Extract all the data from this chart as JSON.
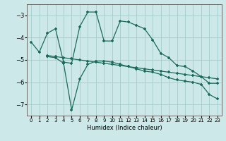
{
  "xlabel": "Humidex (Indice chaleur)",
  "bg_color": "#cce8e8",
  "grid_color": "#aacfcf",
  "line_color": "#1a6b5a",
  "xlim": [
    -0.5,
    23.5
  ],
  "ylim": [
    -7.5,
    -2.5
  ],
  "yticks": [
    -7,
    -6,
    -5,
    -4,
    -3
  ],
  "xticks": [
    0,
    1,
    2,
    3,
    4,
    5,
    6,
    7,
    8,
    9,
    10,
    11,
    12,
    13,
    14,
    15,
    16,
    17,
    18,
    19,
    20,
    21,
    22,
    23
  ],
  "line1_x": [
    0,
    1,
    2,
    3,
    4,
    5,
    6,
    7,
    8,
    9,
    10,
    11,
    12,
    13,
    14,
    15,
    16,
    17,
    18,
    19,
    20,
    21,
    22,
    23
  ],
  "line1_y": [
    -4.2,
    -4.65,
    -3.8,
    -3.6,
    -5.1,
    -5.15,
    -3.5,
    -2.85,
    -2.85,
    -4.15,
    -4.15,
    -3.25,
    -3.3,
    -3.45,
    -3.6,
    -4.1,
    -4.7,
    -4.9,
    -5.25,
    -5.3,
    -5.5,
    -5.75,
    -6.05,
    -6.05
  ],
  "line2_x": [
    2,
    3,
    4,
    5,
    6,
    7,
    8,
    9,
    10,
    11,
    12,
    13,
    14,
    15,
    16,
    17,
    18,
    19,
    20,
    21,
    22,
    23
  ],
  "line2_y": [
    -4.8,
    -4.85,
    -4.9,
    -4.95,
    -5.0,
    -5.05,
    -5.1,
    -5.15,
    -5.2,
    -5.25,
    -5.3,
    -5.35,
    -5.4,
    -5.45,
    -5.5,
    -5.55,
    -5.6,
    -5.65,
    -5.7,
    -5.75,
    -5.8,
    -5.85
  ],
  "line3_x": [
    2,
    3,
    4,
    5,
    6,
    7,
    8,
    9,
    10,
    11,
    12,
    13,
    14,
    15,
    16,
    17,
    18,
    19,
    20,
    21,
    22,
    23
  ],
  "line3_y": [
    -4.85,
    -4.9,
    -5.15,
    -7.25,
    -5.85,
    -5.2,
    -5.05,
    -5.05,
    -5.1,
    -5.2,
    -5.3,
    -5.4,
    -5.5,
    -5.55,
    -5.65,
    -5.8,
    -5.9,
    -5.95,
    -6.0,
    -6.1,
    -6.55,
    -6.75
  ]
}
